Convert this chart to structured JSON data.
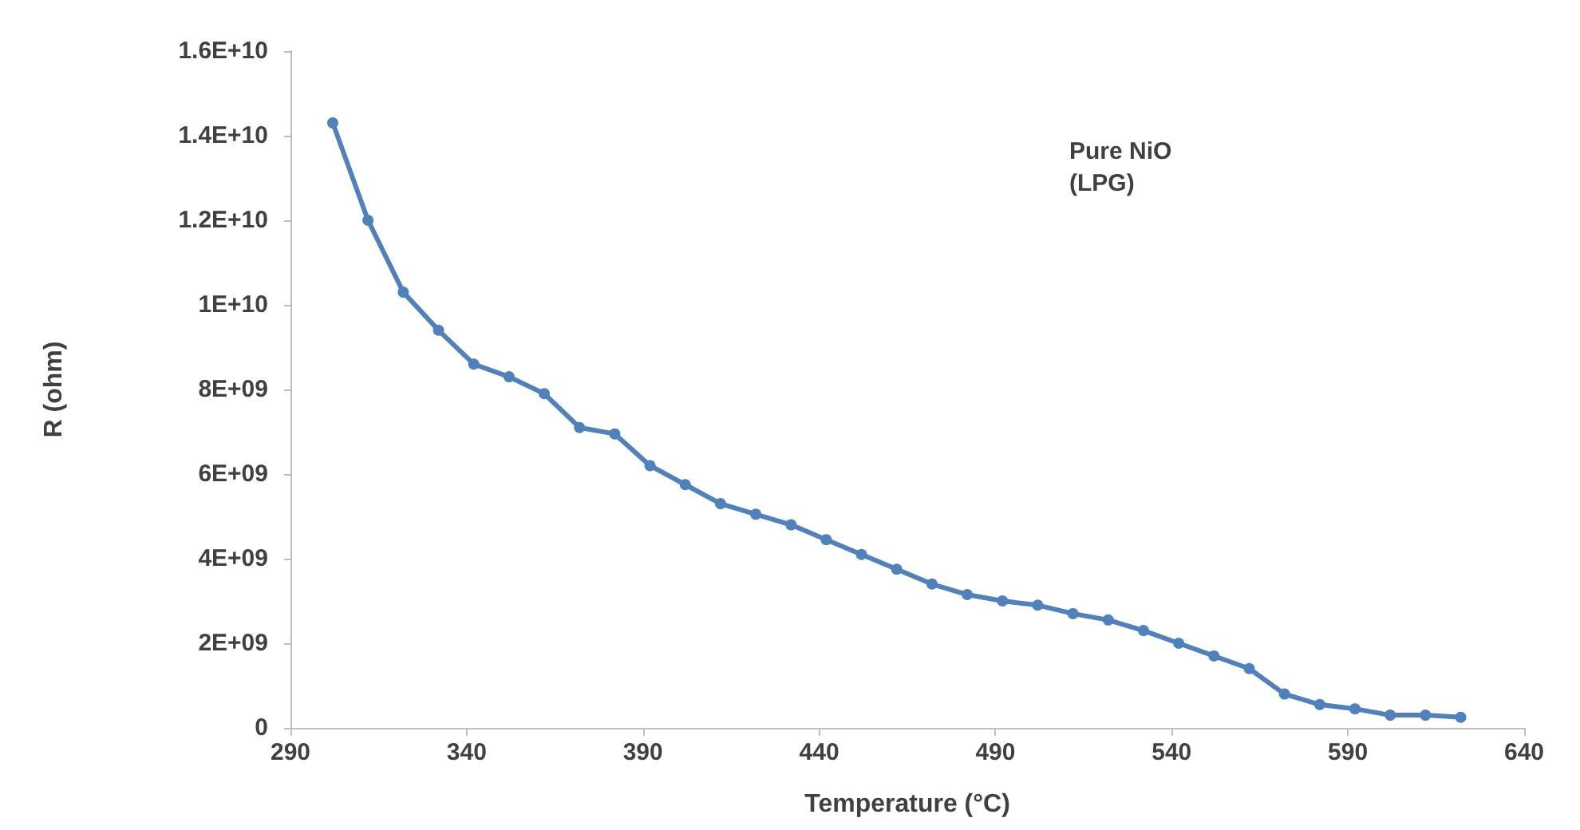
{
  "chart_data": {
    "type": "line",
    "xlabel": "Temperature (°C)",
    "ylabel": "R (ohm)",
    "annotations": [
      "Pure NiO\n(LPG)"
    ],
    "x": [
      302,
      312,
      322,
      332,
      342,
      352,
      362,
      372,
      382,
      392,
      402,
      412,
      422,
      432,
      442,
      452,
      462,
      472,
      482,
      492,
      502,
      512,
      522,
      532,
      542,
      552,
      562,
      572,
      582,
      592,
      602,
      612,
      622
    ],
    "series": [
      {
        "color": "#4f81bd",
        "values": [
          14300000000,
          12000000000,
          10300000000,
          9400000000,
          8600000000,
          8300000000,
          7900000000,
          7100000000,
          6950000000,
          6200000000,
          5750000000,
          5300000000,
          5050000000,
          4800000000,
          4450000000,
          4100000000,
          3750000000,
          3400000000,
          3150000000,
          3000000000,
          2900000000,
          2700000000,
          2550000000,
          2300000000,
          2000000000,
          1700000000,
          1400000000,
          800000000,
          550000000,
          450000000,
          300000000,
          300000000,
          250000000
        ]
      }
    ],
    "xlim": [
      290,
      640
    ],
    "xticks": [
      290,
      340,
      390,
      440,
      490,
      540,
      590,
      640
    ],
    "ylim": [
      0,
      16000000000
    ],
    "yticks": [
      0,
      {
        "value": 2000000000,
        "label": "2E+09"
      },
      {
        "value": 4000000000,
        "label": "4E+09"
      },
      {
        "value": 6000000000,
        "label": "6E+09"
      },
      {
        "value": 8000000000,
        "label": "8E+09"
      },
      {
        "value": 10000000000,
        "label": "1E+10"
      },
      {
        "value": 12000000000,
        "label": "1.2E+10"
      },
      {
        "value": 14000000000,
        "label": "1.4E+10"
      },
      {
        "value": 16000000000,
        "label": "1.6E+10"
      }
    ],
    "grid": false,
    "marker": "circle",
    "line_style": "solid"
  }
}
